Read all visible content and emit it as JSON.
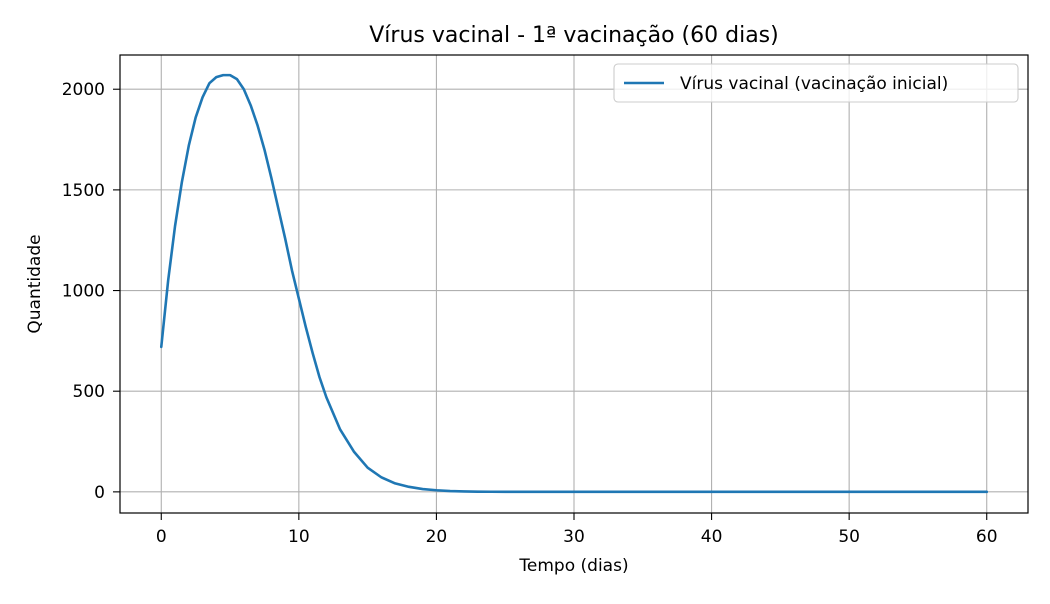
{
  "chart_data": {
    "type": "line",
    "title": "Vírus vacinal - 1ª vacinação (60 dias)",
    "xlabel": "Tempo (dias)",
    "ylabel": "Quantidade",
    "xlim": [
      -3,
      63
    ],
    "ylim": [
      -105,
      2170
    ],
    "xticks": [
      0,
      10,
      20,
      30,
      40,
      50,
      60
    ],
    "yticks": [
      0,
      500,
      1000,
      1500,
      2000
    ],
    "grid": true,
    "legend_position": "top-right",
    "series": [
      {
        "name": "Vírus vacinal (vacinação inicial)",
        "color": "#1f77b4",
        "x": [
          0,
          0.5,
          1,
          1.5,
          2,
          2.5,
          3,
          3.5,
          4,
          4.5,
          5,
          5.5,
          6,
          6.5,
          7,
          7.5,
          8,
          8.5,
          9,
          9.5,
          10,
          10.5,
          11,
          11.5,
          12,
          13,
          14,
          15,
          16,
          17,
          18,
          19,
          20,
          21,
          22,
          23,
          24,
          25,
          26,
          28,
          30,
          35,
          40,
          45,
          50,
          55,
          60
        ],
        "y": [
          720,
          1050,
          1320,
          1540,
          1720,
          1860,
          1960,
          2030,
          2060,
          2070,
          2070,
          2050,
          2000,
          1920,
          1820,
          1700,
          1560,
          1410,
          1260,
          1100,
          960,
          820,
          690,
          570,
          470,
          310,
          200,
          120,
          72,
          42,
          25,
          14,
          8,
          4,
          2,
          1,
          0.5,
          0.2,
          0,
          0,
          0,
          0,
          0,
          0,
          0,
          0,
          0
        ]
      }
    ]
  }
}
